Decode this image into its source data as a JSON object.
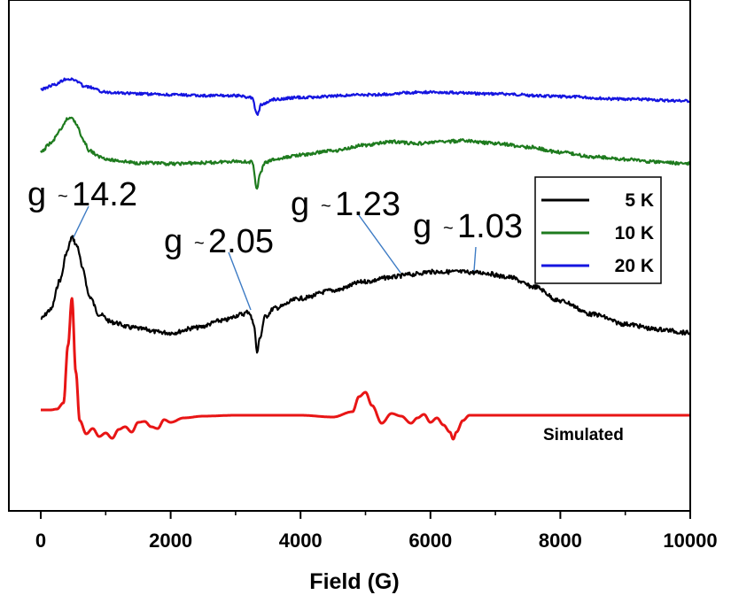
{
  "chart_data": {
    "type": "line",
    "xlabel": "Field (G)",
    "ylabel": "",
    "xlim": [
      0,
      10000
    ],
    "xticks": [
      0,
      2000,
      4000,
      6000,
      8000,
      10000
    ],
    "xtick_labels": [
      "0",
      "2000",
      "4000",
      "6000",
      "8000",
      "10000"
    ],
    "grid": false,
    "legend_position": "right",
    "series": [
      {
        "name": "5 K",
        "color": "#000000",
        "x": [
          0,
          150,
          300,
          400,
          480,
          560,
          650,
          750,
          900,
          1100,
          1400,
          1600,
          1800,
          2000,
          2400,
          2800,
          3100,
          3200,
          3280,
          3330,
          3380,
          3450,
          3600,
          4000,
          4500,
          5000,
          5400,
          5700,
          6000,
          6400,
          6800,
          7200,
          7600,
          8000,
          8500,
          9000,
          9500,
          10000
        ],
        "y": [
          360,
          350,
          316,
          285,
          268,
          278,
          305,
          335,
          355,
          364,
          370,
          372,
          375,
          376,
          370,
          362,
          355,
          352,
          365,
          398,
          380,
          358,
          348,
          337,
          328,
          318,
          313,
          310,
          307,
          307,
          308,
          313,
          324,
          340,
          355,
          366,
          372,
          376
        ]
      },
      {
        "name": "10 K",
        "color": "#1e7b1e",
        "x": [
          0,
          150,
          300,
          400,
          480,
          560,
          650,
          750,
          900,
          1100,
          1500,
          2000,
          2500,
          3000,
          3250,
          3330,
          3380,
          3450,
          3600,
          4000,
          4500,
          5000,
          5400,
          5800,
          6200,
          6500,
          7000,
          7500,
          8000,
          8500,
          9000,
          9500,
          10000
        ],
        "y": [
          172,
          162,
          148,
          135,
          132,
          142,
          158,
          170,
          177,
          181,
          184,
          185,
          184,
          182,
          183,
          212,
          196,
          184,
          180,
          175,
          170,
          164,
          160,
          162,
          160,
          159,
          162,
          166,
          172,
          177,
          180,
          183,
          185
        ]
      },
      {
        "name": "20 K",
        "color": "#1515e0",
        "x": [
          0,
          200,
          400,
          500,
          700,
          1000,
          1500,
          2000,
          2500,
          3000,
          3250,
          3330,
          3400,
          3600,
          4000,
          5000,
          6000,
          7000,
          8000,
          9000,
          10000
        ],
        "y": [
          101,
          96,
          89,
          90,
          98,
          104,
          106,
          107,
          108,
          108,
          110,
          129,
          118,
          112,
          110,
          107,
          104,
          106,
          109,
          112,
          114
        ]
      },
      {
        "name": "Simulated",
        "color": "#e81515",
        "x": [
          0,
          150,
          250,
          350,
          420,
          480,
          540,
          600,
          700,
          800,
          900,
          1000,
          1100,
          1200,
          1300,
          1400,
          1500,
          1600,
          1700,
          1800,
          1900,
          2000,
          2200,
          2500,
          3000,
          3500,
          4000,
          4500,
          4800,
          4900,
          5000,
          5100,
          5250,
          5400,
          5550,
          5700,
          5800,
          5900,
          6000,
          6100,
          6200,
          6300,
          6350,
          6400,
          6500,
          6600,
          7000,
          8000,
          9000,
          10000
        ],
        "y": [
          463,
          463,
          462,
          455,
          390,
          337,
          420,
          475,
          490,
          484,
          493,
          489,
          495,
          485,
          482,
          488,
          477,
          476,
          482,
          484,
          474,
          477,
          472,
          470,
          469,
          469,
          469,
          471,
          465,
          448,
          443,
          458,
          478,
          467,
          470,
          478,
          472,
          468,
          477,
          472,
          480,
          488,
          496,
          488,
          475,
          469,
          469,
          469,
          469,
          469
        ]
      }
    ],
    "annotations": [
      {
        "text": "g",
        "tilde": "~",
        "value": "14.2"
      },
      {
        "text": "g",
        "tilde": "~",
        "value": "2.05"
      },
      {
        "text": "g",
        "tilde": "~",
        "value": "1.23"
      },
      {
        "text": "g",
        "tilde": "~",
        "value": "1.03"
      }
    ],
    "simulated_label": "Simulated",
    "legend": [
      "5 K",
      "10 K",
      "20 K"
    ]
  }
}
